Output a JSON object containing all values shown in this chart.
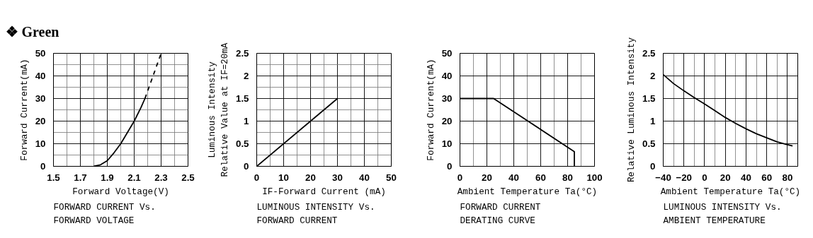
{
  "chart_data": [
    {
      "type": "line",
      "title": "❖ Green",
      "xlabel": "Forward Voltage(V)",
      "ylabel": "Forward Current(mA)",
      "annotations": [
        "FORWARD CURRENT Vs.",
        "FORWARD VOLTAGE"
      ],
      "series": [
        {
          "color": "#000000",
          "line_style": "solid",
          "x": [
            1.8,
            1.85,
            1.9,
            1.95,
            2.0,
            2.05,
            2.1,
            2.15,
            2.18
          ],
          "values": [
            0,
            0.7,
            2.5,
            6,
            10,
            15,
            20,
            26,
            30
          ]
        },
        {
          "color": "#000000",
          "line_style": "dashed",
          "x": [
            2.18,
            2.24,
            2.3
          ],
          "values": [
            30,
            40,
            50
          ]
        }
      ],
      "xlim": [
        1.5,
        2.5
      ],
      "xticks": [
        1.5,
        1.7,
        1.9,
        2.1,
        2.3,
        2.5
      ],
      "ylim": [
        0,
        50
      ],
      "yticks": [
        0,
        10,
        20,
        30,
        40,
        50
      ],
      "grid": true
    },
    {
      "type": "line",
      "xlabel": "IF-Forward Current (mA)",
      "ylabel": "Luminous Intensity\nRelative Value at IF=20mA",
      "annotations": [
        "LUMINOUS INTENSITY Vs.",
        "FORWARD CURRENT"
      ],
      "series": [
        {
          "color": "#000000",
          "line_style": "solid",
          "x": [
            0,
            30
          ],
          "values": [
            0,
            1.5
          ]
        }
      ],
      "xlim": [
        0,
        50
      ],
      "xticks": [
        0,
        10,
        20,
        30,
        40,
        50
      ],
      "ylim": [
        0,
        2.5
      ],
      "yticks": [
        0,
        0.5,
        1.0,
        1.5,
        2.0,
        2.5
      ],
      "grid": true
    },
    {
      "type": "line",
      "xlabel": "Ambient Temperature Ta(°C)",
      "ylabel": "Forward Current(mA)",
      "annotations": [
        "FORWARD CURRENT",
        "DERATING CURVE"
      ],
      "series": [
        {
          "color": "#000000",
          "line_style": "solid",
          "x": [
            0,
            25,
            85,
            85
          ],
          "values": [
            30,
            30,
            6.5,
            0
          ]
        }
      ],
      "xlim": [
        0,
        100
      ],
      "xticks": [
        0,
        20,
        40,
        60,
        80,
        100
      ],
      "ylim": [
        0,
        50
      ],
      "yticks": [
        0,
        10,
        20,
        30,
        40,
        50
      ],
      "grid": true
    },
    {
      "type": "line",
      "xlabel": "Ambient Temperature Ta(°C)",
      "ylabel": "Relative Luminous Intensity",
      "annotations": [
        "LUMINOUS INTENSITY Vs.",
        "AMBIENT TEMPERATURE"
      ],
      "series": [
        {
          "color": "#000000",
          "line_style": "solid",
          "x": [
            -40,
            -30,
            -20,
            -10,
            0,
            10,
            20,
            30,
            40,
            50,
            60,
            70,
            80,
            85
          ],
          "values": [
            2.03,
            1.83,
            1.67,
            1.52,
            1.38,
            1.23,
            1.08,
            0.95,
            0.83,
            0.72,
            0.63,
            0.54,
            0.48,
            0.45
          ]
        }
      ],
      "xlim": [
        -40,
        90
      ],
      "xticks": [
        -40,
        -20,
        0,
        20,
        40,
        60,
        80
      ],
      "ylim": [
        0,
        2.5
      ],
      "yticks": [
        0,
        0.5,
        1.0,
        1.5,
        2.0,
        2.5
      ],
      "grid": true
    }
  ]
}
